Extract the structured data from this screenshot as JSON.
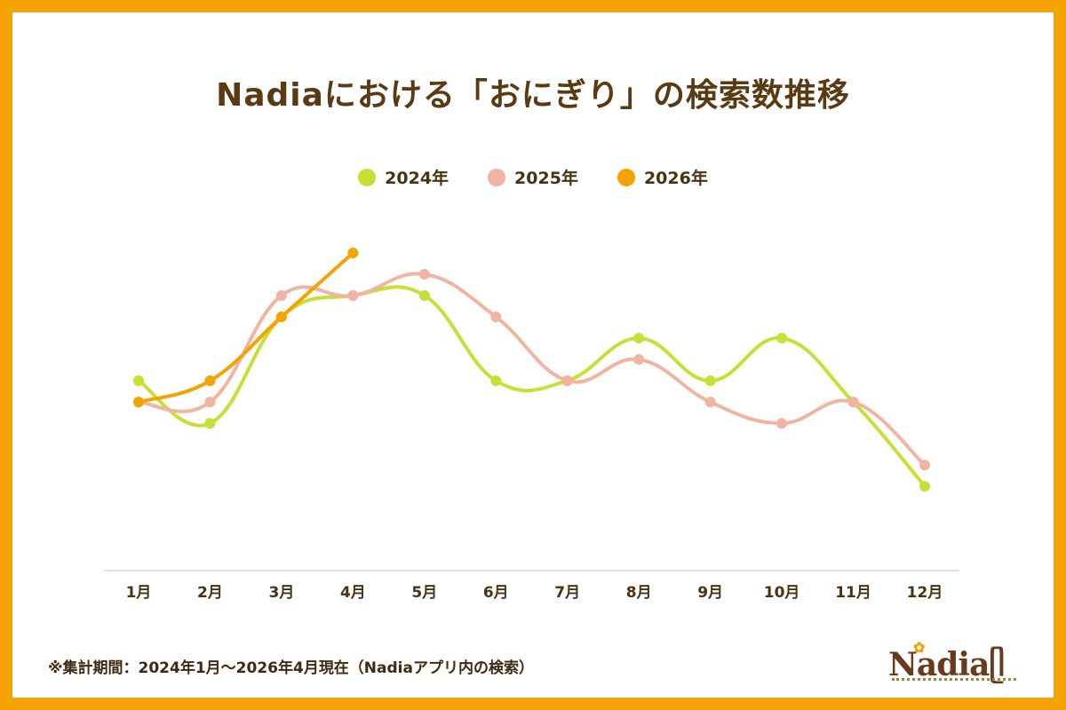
{
  "chart_data": {
    "type": "line",
    "title": "Nadiaにおける「おにぎり」の検索数推移",
    "categories": [
      "1月",
      "2月",
      "3月",
      "4月",
      "5月",
      "6月",
      "7月",
      "8月",
      "9月",
      "10月",
      "11月",
      "12月"
    ],
    "xlabel": "",
    "ylabel": "",
    "ylim": [
      0,
      100
    ],
    "grid": false,
    "smooth": true,
    "legend_position": "top-center",
    "series": [
      {
        "name": "2024年",
        "color": "#C8DF35",
        "values": [
          53.5,
          41.5,
          71.5,
          77.5,
          77.5,
          53.5,
          53.5,
          65.5,
          53.5,
          65.5,
          47.5,
          23.75
        ]
      },
      {
        "name": "2025年",
        "color": "#F1B4A0",
        "values": [
          47.5,
          47.5,
          77.5,
          77.5,
          83.5,
          71.5,
          53.5,
          59.5,
          47.5,
          41.5,
          47.5,
          29.75
        ]
      },
      {
        "name": "2026年",
        "color": "#F5A300",
        "values": [
          47.5,
          53.5,
          71.5,
          89.5
        ]
      }
    ]
  },
  "footnote": "※集計期間：2024年1月〜2026年4月現在（Nadiaアプリ内の検索）",
  "logo": {
    "text": "Nadia",
    "icon": "fork-spoon-icon",
    "flower": "flower-icon"
  }
}
